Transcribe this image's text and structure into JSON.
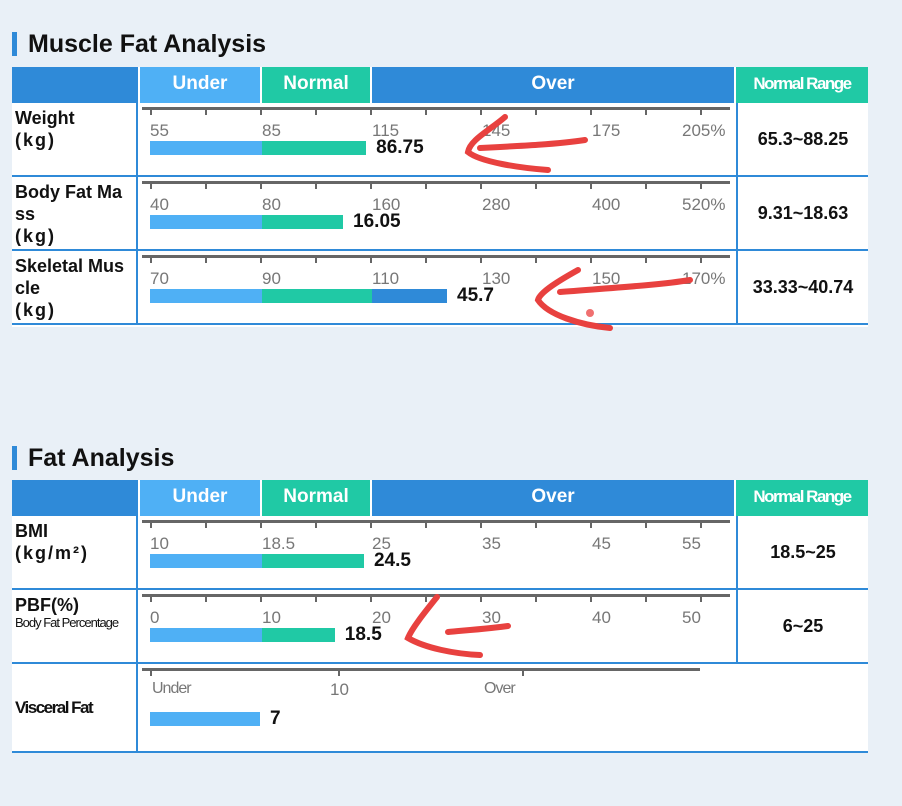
{
  "colors": {
    "under": "#4fb0f5",
    "normal": "#20c9a5",
    "over": "#2f8ad8",
    "annotation": "#e8413f"
  },
  "muscle": {
    "title": "Muscle Fat Analysis",
    "header": {
      "under": "Under",
      "normal": "Normal",
      "over": "Over",
      "range": "Normal Range"
    },
    "rows": [
      {
        "label": "Weight",
        "unit": "(kg)",
        "ticks": [
          "55",
          "85",
          "115",
          "145",
          "175",
          "205%"
        ],
        "value": "86.75",
        "bar_fraction": 0.393,
        "range": "65.3~88.25"
      },
      {
        "label": "Body Fat Ma ss",
        "unit": "(kg)",
        "ticks": [
          "40",
          "80",
          "160",
          "280",
          "400",
          "520%"
        ],
        "value": "16.05",
        "bar_fraction": 0.351,
        "range": "9.31~18.63"
      },
      {
        "label": "Skeletal Mus cle",
        "unit": "(kg)",
        "ticks": [
          "70",
          "90",
          "110",
          "130",
          "150",
          "170%"
        ],
        "value": "45.7",
        "bar_fraction": 0.54,
        "range": "33.33~40.74"
      }
    ]
  },
  "fat": {
    "title": "Fat Analysis",
    "header": {
      "under": "Under",
      "normal": "Normal",
      "over": "Over",
      "range": "Normal Range"
    },
    "rows": [
      {
        "label": "BMI",
        "unit": "(kg/m²)",
        "ticks": [
          "10",
          "18.5",
          "25",
          "35",
          "45",
          "55"
        ],
        "value": "24.5",
        "bar_fraction": 0.389,
        "range": "18.5~25"
      },
      {
        "label": "PBF(%)",
        "sub": "Body Fat Percentage",
        "ticks": [
          "0",
          "10",
          "20",
          "30",
          "40",
          "50"
        ],
        "value": "18.5",
        "bar_fraction": 0.336,
        "range": "6~25"
      }
    ],
    "visceral": {
      "label": "Visceral Fat",
      "ticks": [
        "Under",
        "10",
        "Over"
      ],
      "value": "7",
      "bar_fraction": 0.2
    }
  }
}
